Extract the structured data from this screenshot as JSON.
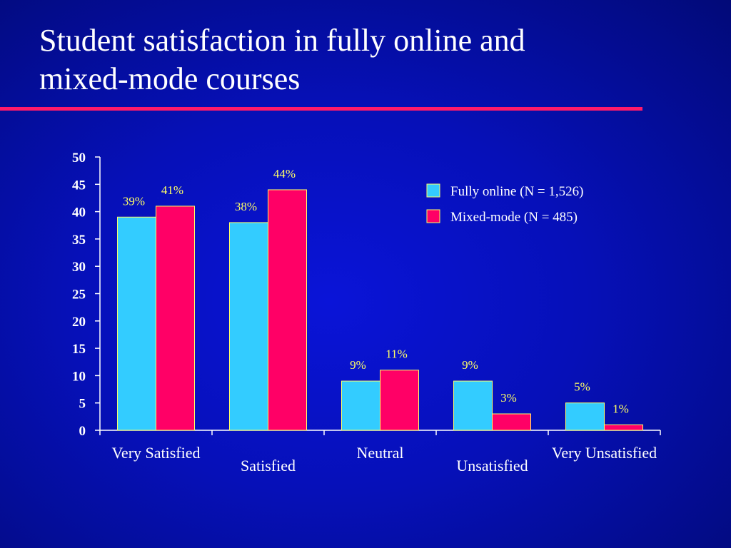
{
  "slide": {
    "title_line1": "Student satisfaction in fully online and",
    "title_line2": "mixed-mode courses"
  },
  "colors": {
    "background": "#0610b8",
    "title_rule": "#ff1a6a",
    "series_1": "#33ccff",
    "series_2": "#ff0066",
    "bar_outline": "#ffff66",
    "data_label": "#ffff66",
    "text": "#ffffff"
  },
  "chart_data": {
    "type": "bar",
    "categories": [
      "Very Satisfied",
      "Satisfied",
      "Neutral",
      "Unsatisfied",
      "Very Unsatisfied"
    ],
    "series": [
      {
        "name": "Fully online (N = 1,526)",
        "values": [
          39,
          38,
          9,
          9,
          5
        ],
        "labels": [
          "39%",
          "38%",
          "9%",
          "9%",
          "5%"
        ]
      },
      {
        "name": "Mixed-mode (N = 485)",
        "values": [
          41,
          44,
          11,
          3,
          1
        ],
        "labels": [
          "41%",
          "44%",
          "11%",
          "3%",
          "1%"
        ]
      }
    ],
    "ylim": [
      0,
      50
    ],
    "yticks": [
      0,
      5,
      10,
      15,
      20,
      25,
      30,
      35,
      40,
      45,
      50
    ],
    "legend_position": "top-right",
    "grid": false
  }
}
